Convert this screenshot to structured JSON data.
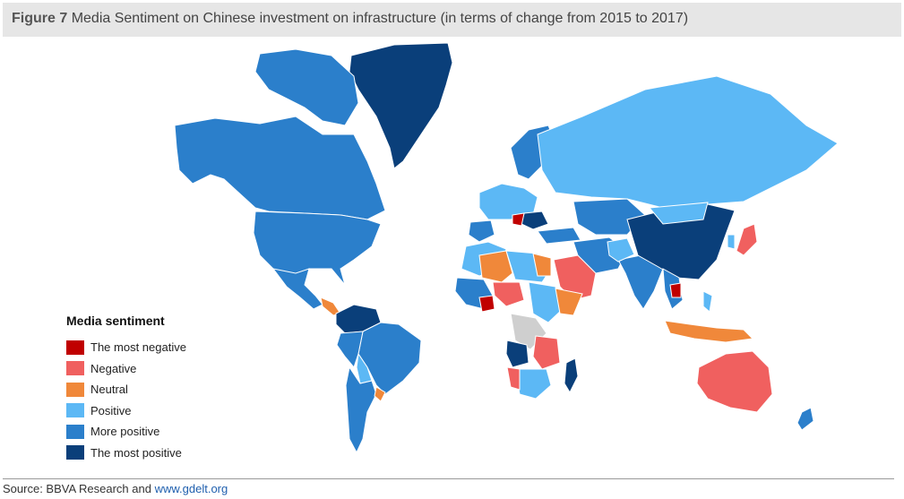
{
  "header": {
    "figure_label": "Figure 7",
    "title": "Media Sentiment on Chinese investment on infrastructure (in terms of change from 2015 to 2017)"
  },
  "legend": {
    "title": "Media sentiment",
    "items": [
      {
        "label": "The most negative",
        "color": "#c00000"
      },
      {
        "label": "Negative",
        "color": "#f0605f"
      },
      {
        "label": "Neutral",
        "color": "#f0883a"
      },
      {
        "label": "Positive",
        "color": "#5cb8f5"
      },
      {
        "label": "More positive",
        "color": "#2b7fcb"
      },
      {
        "label": "The most positive",
        "color": "#0a3f7a"
      }
    ]
  },
  "colors": {
    "most_negative": "#c00000",
    "negative": "#f0605f",
    "neutral": "#f0883a",
    "positive": "#5cb8f5",
    "more_positive": "#2b7fcb",
    "most_positive": "#0a3f7a",
    "no_data": "#cfcfcf"
  },
  "source": {
    "prefix": "Source: BBVA Research and ",
    "link_text": "www.gdelt.org"
  }
}
